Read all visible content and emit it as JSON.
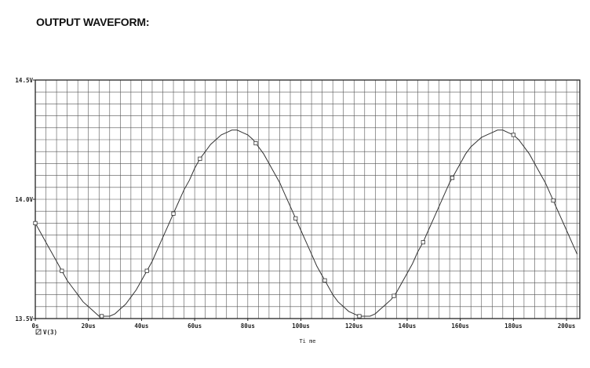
{
  "heading": "OUTPUT WAVEFORM:",
  "chart_data": {
    "type": "line",
    "title": "",
    "xlabel": "Ti me",
    "ylabel": "",
    "xlim": [
      0,
      205
    ],
    "ylim": [
      13.5,
      14.5
    ],
    "x_unit": "us",
    "x_ticks": [
      {
        "v": 0,
        "label": "0s"
      },
      {
        "v": 20,
        "label": "20us"
      },
      {
        "v": 40,
        "label": "40us"
      },
      {
        "v": 60,
        "label": "60us"
      },
      {
        "v": 80,
        "label": "80us"
      },
      {
        "v": 100,
        "label": "100us"
      },
      {
        "v": 120,
        "label": "120us"
      },
      {
        "v": 140,
        "label": "140us"
      },
      {
        "v": 160,
        "label": "160us"
      },
      {
        "v": 180,
        "label": "180us"
      },
      {
        "v": 200,
        "label": "200us"
      }
    ],
    "y_ticks": [
      {
        "v": 14.5,
        "label": "14.5V"
      },
      {
        "v": 14.0,
        "label": "14.0V"
      },
      {
        "v": 13.5,
        "label": "13.5V"
      }
    ],
    "grid": true,
    "legend_position": "bottom-left",
    "series": [
      {
        "name": "V(3)",
        "color": "#333333",
        "x": [
          0,
          2,
          4,
          6,
          8,
          10,
          12,
          14,
          16,
          18,
          20,
          22,
          24,
          25,
          26,
          28,
          30,
          32,
          34,
          36,
          38,
          40,
          42,
          44,
          46,
          48,
          50,
          52,
          54,
          56,
          58,
          60,
          62,
          64,
          66,
          68,
          70,
          72,
          74,
          75,
          76,
          78,
          80,
          82,
          84,
          86,
          88,
          90,
          92,
          94,
          96,
          98,
          100,
          102,
          104,
          106,
          108,
          110,
          112,
          114,
          116,
          118,
          120,
          122,
          124,
          125,
          126,
          128,
          130,
          132,
          134,
          136,
          138,
          140,
          142,
          144,
          146,
          148,
          150,
          152,
          154,
          156,
          158,
          160,
          162,
          164,
          166,
          168,
          170,
          172,
          174,
          175,
          176,
          178,
          180,
          182,
          184,
          186,
          188,
          190,
          192,
          194,
          196,
          198,
          200,
          202,
          204
        ],
        "y": [
          13.9,
          13.86,
          13.82,
          13.78,
          13.74,
          13.7,
          13.66,
          13.63,
          13.6,
          13.57,
          13.55,
          13.53,
          13.51,
          13.51,
          13.51,
          13.51,
          13.52,
          13.54,
          13.56,
          13.59,
          13.62,
          13.66,
          13.7,
          13.74,
          13.79,
          13.84,
          13.89,
          13.94,
          13.99,
          14.04,
          14.08,
          14.13,
          14.17,
          14.2,
          14.23,
          14.25,
          14.27,
          14.28,
          14.29,
          14.29,
          14.29,
          14.28,
          14.27,
          14.25,
          14.22,
          14.19,
          14.15,
          14.11,
          14.07,
          14.02,
          13.97,
          13.92,
          13.87,
          13.82,
          13.77,
          13.72,
          13.68,
          13.64,
          13.6,
          13.57,
          13.55,
          13.53,
          13.52,
          13.51,
          13.51,
          13.51,
          13.51,
          13.52,
          13.54,
          13.56,
          13.58,
          13.61,
          13.65,
          13.69,
          13.73,
          13.78,
          13.82,
          13.87,
          13.92,
          13.97,
          14.02,
          14.07,
          14.11,
          14.15,
          14.19,
          14.22,
          14.24,
          14.26,
          14.27,
          14.28,
          14.29,
          14.29,
          14.29,
          14.28,
          14.27,
          14.25,
          14.22,
          14.19,
          14.15,
          14.11,
          14.07,
          14.02,
          13.97,
          13.92,
          13.87,
          13.82,
          13.77
        ],
        "markers_x": [
          0,
          10,
          25,
          42,
          52,
          62,
          83,
          98,
          109,
          122,
          135,
          146,
          157,
          180,
          195
        ]
      }
    ]
  }
}
